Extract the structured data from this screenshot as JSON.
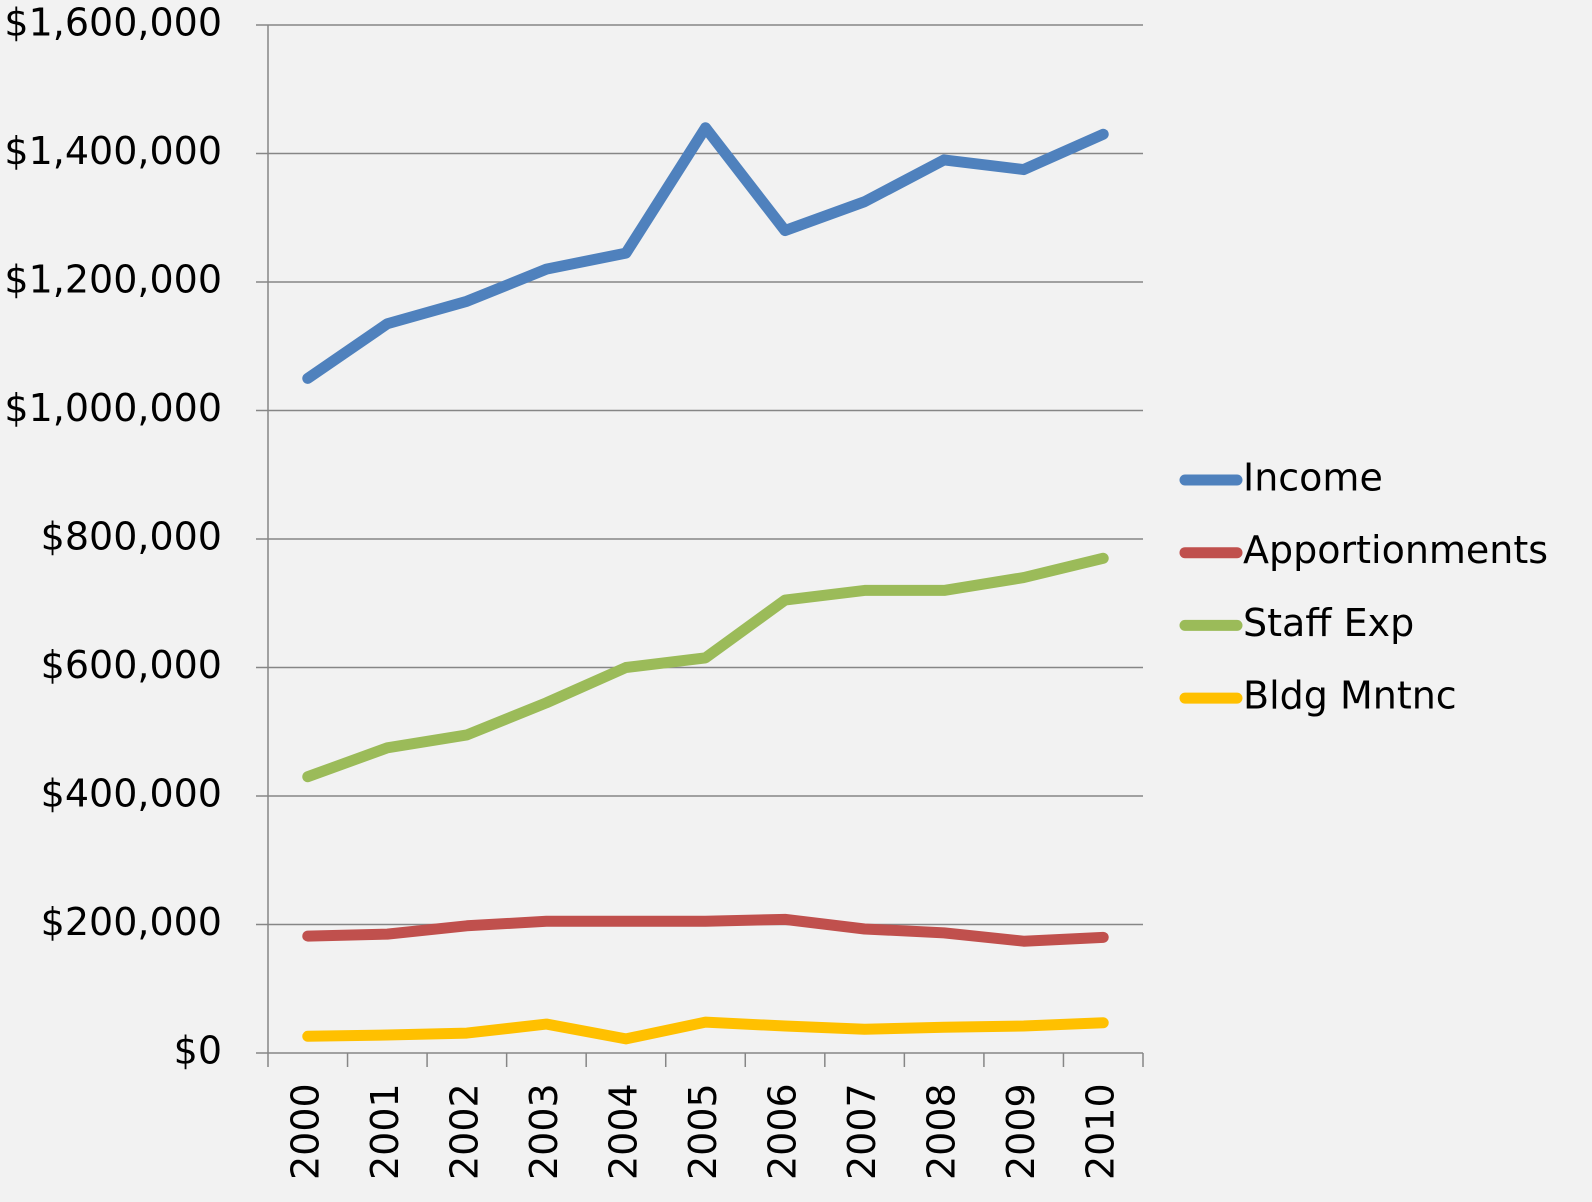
{
  "chart_data": {
    "type": "line",
    "categories": [
      "2000",
      "2001",
      "2002",
      "2003",
      "2004",
      "2005",
      "2006",
      "2007",
      "2008",
      "2009",
      "2010"
    ],
    "series": [
      {
        "name": "Income",
        "color": "#4f81bd",
        "values": [
          1050000,
          1135000,
          1170000,
          1220000,
          1245000,
          1440000,
          1280000,
          1325000,
          1390000,
          1375000,
          1430000
        ]
      },
      {
        "name": "Apportionments",
        "color": "#c0504d",
        "values": [
          182000,
          185000,
          198000,
          205000,
          205000,
          205000,
          208000,
          193000,
          187000,
          174000,
          180000
        ]
      },
      {
        "name": "Staff Exp",
        "color": "#9bbb59",
        "values": [
          430000,
          475000,
          495000,
          545000,
          600000,
          615000,
          705000,
          720000,
          720000,
          740000,
          770000
        ]
      },
      {
        "name": "Bldg Mntnc",
        "color": "#ffc000",
        "values": [
          26000,
          28000,
          31000,
          45000,
          22000,
          48000,
          42000,
          37000,
          40000,
          42000,
          47000
        ]
      }
    ],
    "ylim": [
      0,
      1600000
    ],
    "yticks": [
      {
        "value": 0,
        "label": "$0"
      },
      {
        "value": 200000,
        "label": "$200,000"
      },
      {
        "value": 400000,
        "label": "$400,000"
      },
      {
        "value": 600000,
        "label": "$600,000"
      },
      {
        "value": 800000,
        "label": "$800,000"
      },
      {
        "value": 1000000,
        "label": "$1,000,000"
      },
      {
        "value": 1200000,
        "label": "$1,200,000"
      },
      {
        "value": 1400000,
        "label": "$1,400,000"
      },
      {
        "value": 1600000,
        "label": "$1,600,000"
      }
    ],
    "grid": true,
    "legend": "right"
  }
}
